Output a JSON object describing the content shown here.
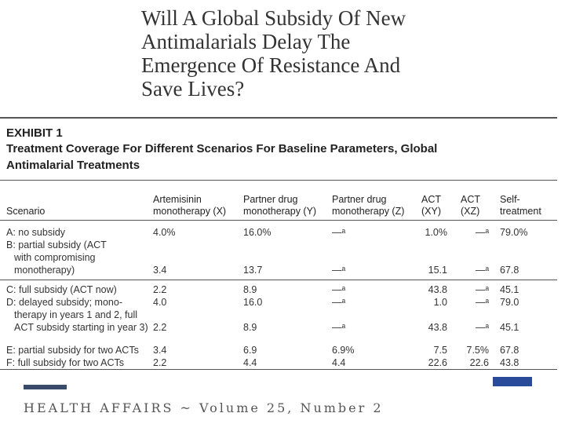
{
  "title": [
    "Will A Global Subsidy Of New",
    "Antimalarials Delay The",
    "Emergence Of Resistance And",
    "Save Lives?"
  ],
  "exhibit": {
    "label": "EXHIBIT 1",
    "title": [
      "Treatment Coverage For Different Scenarios For Baseline Parameters, Global",
      "Antimalarial Treatments"
    ]
  },
  "table": {
    "columns": [
      [
        "Scenario"
      ],
      [
        "Artemisinin",
        "monotherapy (X)"
      ],
      [
        "Partner drug",
        "monotherapy (Y)"
      ],
      [
        "Partner drug",
        "monotherapy (Z)"
      ],
      [
        "ACT",
        "(XY)"
      ],
      [
        "ACT",
        "(XZ)"
      ],
      [
        "Self-",
        "treatment"
      ]
    ],
    "groups": [
      [
        {
          "lines": [
            {
              "label": "A: no subsidy",
              "values": [
                "4.0%",
                "16.0%",
                "—ᵃ",
                "1.0%",
                "—ᵃ",
                "79.0%"
              ]
            }
          ]
        },
        {
          "lines": [
            {
              "label": "B: partial subsidy (ACT"
            },
            {
              "label": "with compromising"
            },
            {
              "label": "monotherapy)",
              "values": [
                "3.4",
                "13.7",
                "—ᵃ",
                "15.1",
                "—ᵃ",
                "67.8"
              ]
            }
          ]
        }
      ],
      [
        {
          "lines": [
            {
              "label": "C: full subsidy (ACT now)",
              "values": [
                "2.2",
                "8.9",
                "—ᵃ",
                "43.8",
                "—ᵃ",
                "45.1"
              ]
            }
          ]
        },
        {
          "lines": [
            {
              "label": "D: delayed subsidy; mono-",
              "values": [
                "4.0",
                "16.0",
                "—ᵃ",
                "1.0",
                "—ᵃ",
                "79.0"
              ]
            },
            {
              "label": "therapy in years 1 and 2, full"
            },
            {
              "label": "ACT subsidy starting in year 3)",
              "values": [
                "2.2",
                "8.9",
                "—ᵃ",
                "43.8",
                "—ᵃ",
                "45.1"
              ]
            }
          ]
        }
      ],
      [
        {
          "lines": [
            {
              "label": "E: partial subsidy for two ACTs",
              "values": [
                "3.4",
                "6.9",
                "6.9%",
                "7.5",
                "7.5%",
                "67.8"
              ]
            }
          ]
        },
        {
          "lines": [
            {
              "label": "F: full subsidy for two ACTs",
              "values": [
                "2.2",
                "4.4",
                "4.4",
                "22.6",
                "22.6",
                "43.8"
              ]
            }
          ]
        }
      ]
    ]
  },
  "footer": "HEALTH AFFAIRS ~ Volume 25, Number 2"
}
